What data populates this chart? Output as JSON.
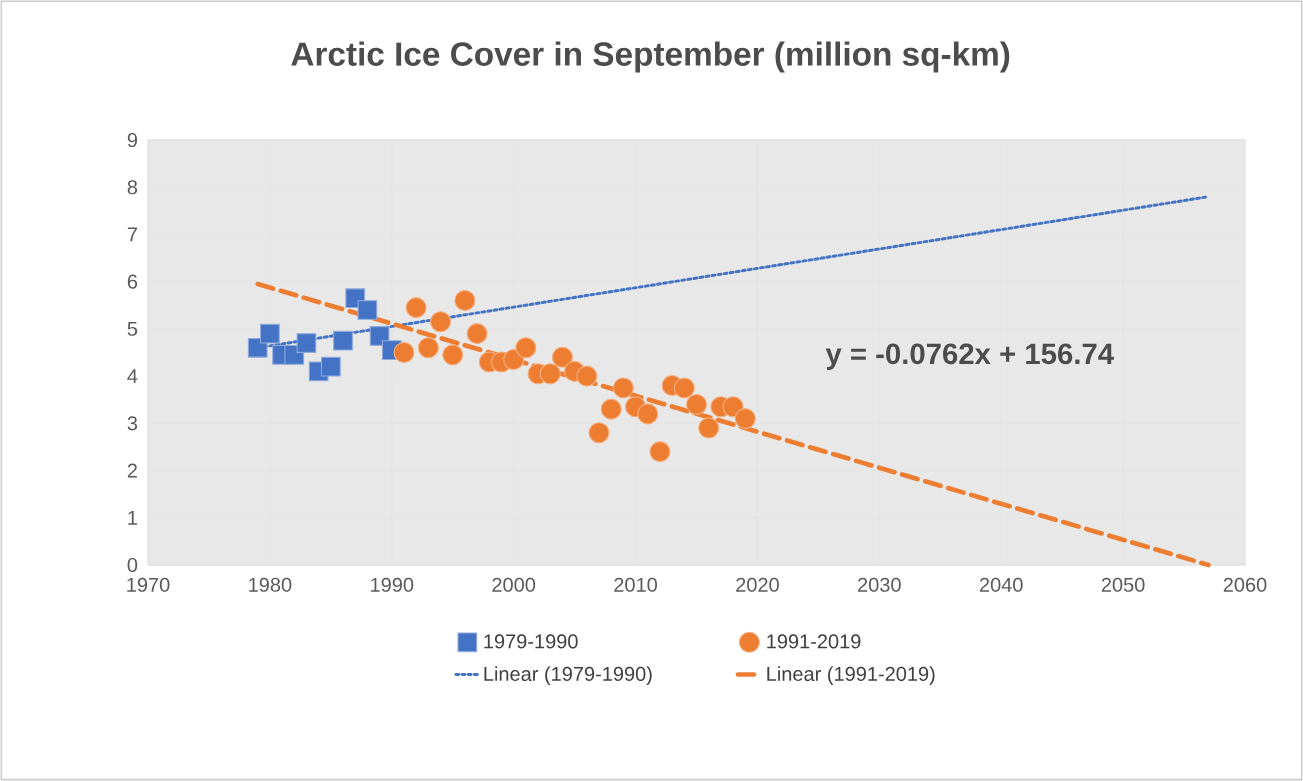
{
  "chart_data": {
    "type": "scatter",
    "title": "Arctic Ice Cover in September (million sq-km)",
    "xlim": [
      1970,
      2060
    ],
    "xticks": [
      1970,
      1980,
      1990,
      2000,
      2010,
      2020,
      2030,
      2040,
      2050,
      2060
    ],
    "ylim": [
      0,
      9
    ],
    "yticks": [
      0,
      1,
      2,
      3,
      4,
      5,
      6,
      7,
      8,
      9
    ],
    "grid": true,
    "legend": "bottom",
    "annotations": [
      "y = -0.0762x + 156.74"
    ],
    "series": [
      {
        "name": "1979-1990",
        "marker": "square",
        "color": "#4472c4",
        "x": [
          1979,
          1980,
          1981,
          1982,
          1983,
          1984,
          1985,
          1986,
          1987,
          1988,
          1989,
          1990
        ],
        "values": [
          4.6,
          4.9,
          4.45,
          4.45,
          4.7,
          4.1,
          4.2,
          4.75,
          5.65,
          5.4,
          4.85,
          4.55
        ]
      },
      {
        "name": "1991-2019",
        "marker": "circle",
        "color": "#ed7d31",
        "x": [
          1991,
          1992,
          1993,
          1994,
          1995,
          1996,
          1997,
          1998,
          1999,
          2000,
          2001,
          2002,
          2003,
          2004,
          2005,
          2006,
          2007,
          2008,
          2009,
          2010,
          2011,
          2012,
          2013,
          2014,
          2015,
          2016,
          2017,
          2018,
          2019
        ],
        "values": [
          4.5,
          5.45,
          4.6,
          5.15,
          4.45,
          5.6,
          4.9,
          4.3,
          4.3,
          4.35,
          4.6,
          4.05,
          4.05,
          4.4,
          4.1,
          4.0,
          2.8,
          3.3,
          3.75,
          3.35,
          3.2,
          2.4,
          3.8,
          3.75,
          3.4,
          2.9,
          3.35,
          3.35,
          3.1
        ]
      },
      {
        "name": "Linear (1979-1990)",
        "type": "line",
        "line_style": "dotted",
        "color": "#4472c4",
        "x": [
          1979,
          2057
        ],
        "values": [
          4.6,
          7.8
        ]
      },
      {
        "name": "Linear (1991-2019)",
        "type": "line",
        "line_style": "dashed",
        "color": "#ed7d31",
        "x": [
          1979,
          2057
        ],
        "values": [
          5.95,
          0.0
        ]
      }
    ]
  }
}
